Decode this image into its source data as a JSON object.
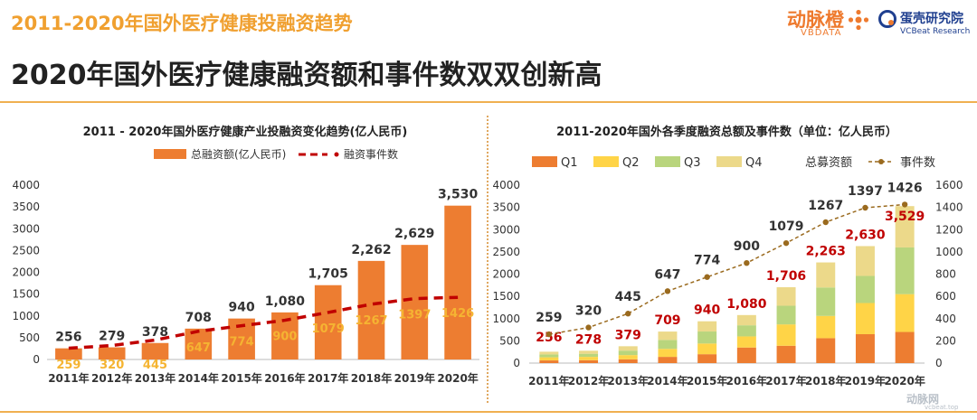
{
  "header": {
    "top_title": "2011-2020年国外医疗健康投融资趋势",
    "main_title": "2020年国外医疗健康融资额和事件数双双创新高"
  },
  "logos": {
    "vbdata_name": "动脉橙",
    "vbdata_sub": "VBDATA",
    "vcbeat_name": "蛋壳研究院",
    "vcbeat_sub": "VCBeat Research",
    "watermark": "动脉网",
    "watermark_sub": "vcbeat.top"
  },
  "colors": {
    "bar_orange": "#ed7d31",
    "q1": "#ed7d31",
    "q2": "#ffd447",
    "q3": "#b9d57d",
    "q4": "#ecd98a",
    "event_red": "#c00000",
    "event_brown": "#9a6a1e",
    "label_gold": "#f5b432",
    "label_dark": "#333333"
  },
  "chart_data": [
    {
      "type": "bar",
      "title": "2011 - 2020年国外医疗健康产业投融资变化趋势(亿人民币)",
      "categories": [
        "2011年",
        "2012年",
        "2013年",
        "2014年",
        "2015年",
        "2016年",
        "2017年",
        "2018年",
        "2019年",
        "2020年"
      ],
      "series": [
        {
          "name": "总融资额(亿人民币)",
          "values": [
            256,
            279,
            378,
            708,
            940,
            1080,
            1705,
            2262,
            2629,
            3530
          ],
          "labels": [
            "256",
            "279",
            "378",
            "708",
            "940",
            "1,080",
            "1,705",
            "2,262",
            "2,629",
            "3,530"
          ]
        },
        {
          "name": "融资事件数",
          "values": [
            259,
            320,
            445,
            647,
            774,
            900,
            1079,
            1267,
            1397,
            1426
          ]
        }
      ],
      "ylim": [
        0,
        4000
      ],
      "yticks": [
        0,
        500,
        1000,
        1500,
        2000,
        2500,
        3000,
        3500,
        4000
      ],
      "legend": "top"
    },
    {
      "type": "bar",
      "stacked": true,
      "title": "2011-2020年国外各季度融资总额及事件数（单位：亿人民币）",
      "categories": [
        "2011年",
        "2012年",
        "2013年",
        "2014年",
        "2015年",
        "2016年",
        "2017年",
        "2018年",
        "2019年",
        "2020年"
      ],
      "series": [
        {
          "name": "Q1",
          "values": [
            60,
            65,
            85,
            140,
            200,
            350,
            390,
            560,
            650,
            700
          ]
        },
        {
          "name": "Q2",
          "values": [
            70,
            75,
            95,
            180,
            240,
            250,
            480,
            500,
            700,
            850
          ]
        },
        {
          "name": "Q3",
          "values": [
            65,
            70,
            100,
            200,
            270,
            250,
            420,
            640,
            610,
            1050
          ]
        },
        {
          "name": "Q4",
          "values": [
            61,
            68,
            99,
            189,
            230,
            230,
            416,
            563,
            670,
            929
          ]
        },
        {
          "name": "总募资额",
          "values": [
            256,
            278,
            379,
            709,
            940,
            1080,
            1706,
            2263,
            2630,
            3529
          ],
          "labels": [
            "256",
            "278",
            "379",
            "709",
            "940",
            "1,080",
            "1,706",
            "2,263",
            "2,630",
            "3,529"
          ]
        },
        {
          "name": "事件数",
          "values": [
            259,
            320,
            445,
            647,
            774,
            900,
            1079,
            1267,
            1397,
            1426
          ]
        }
      ],
      "ylim": [
        0,
        4000
      ],
      "yticks": [
        0,
        500,
        1000,
        1500,
        2000,
        2500,
        3000,
        3500,
        4000
      ],
      "y2lim": [
        0,
        1600
      ],
      "y2ticks": [
        0,
        200,
        400,
        600,
        800,
        1000,
        1200,
        1400,
        1600
      ],
      "legend": "top"
    }
  ]
}
